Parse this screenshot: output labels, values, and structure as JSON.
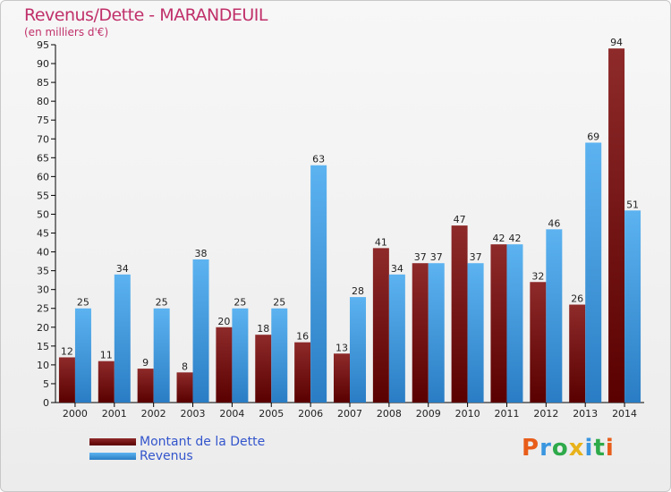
{
  "page": {
    "title": "Revenus/Dette - MARANDEUIL",
    "subtitle": "(en milliers d'€)",
    "logo": "Proxiti"
  },
  "colors": {
    "dette": "#7a1515",
    "revenus": "#3a96e0",
    "title": "#c0306a",
    "legend_text": "#3355cc"
  },
  "chart_data": {
    "type": "bar",
    "title": "Revenus/Dette - MARANDEUIL",
    "ylabel": "(en milliers d'€)",
    "xlabel": "",
    "ylim": [
      0,
      95
    ],
    "yticks": [
      0,
      5,
      10,
      15,
      20,
      25,
      30,
      35,
      40,
      45,
      50,
      55,
      60,
      65,
      70,
      75,
      80,
      85,
      90,
      95
    ],
    "grid": false,
    "legend_position": "bottom-left",
    "categories": [
      "2000",
      "2001",
      "2002",
      "2003",
      "2004",
      "2005",
      "2006",
      "2007",
      "2008",
      "2009",
      "2010",
      "2011",
      "2012",
      "2013",
      "2014"
    ],
    "series": [
      {
        "name": "Montant de la Dette",
        "values": [
          12,
          11,
          9,
          8,
          20,
          18,
          16,
          13,
          41,
          37,
          47,
          42,
          32,
          26,
          94
        ]
      },
      {
        "name": "Revenus",
        "values": [
          25,
          34,
          25,
          38,
          25,
          25,
          63,
          28,
          34,
          37,
          37,
          42,
          46,
          69,
          51
        ]
      }
    ]
  }
}
